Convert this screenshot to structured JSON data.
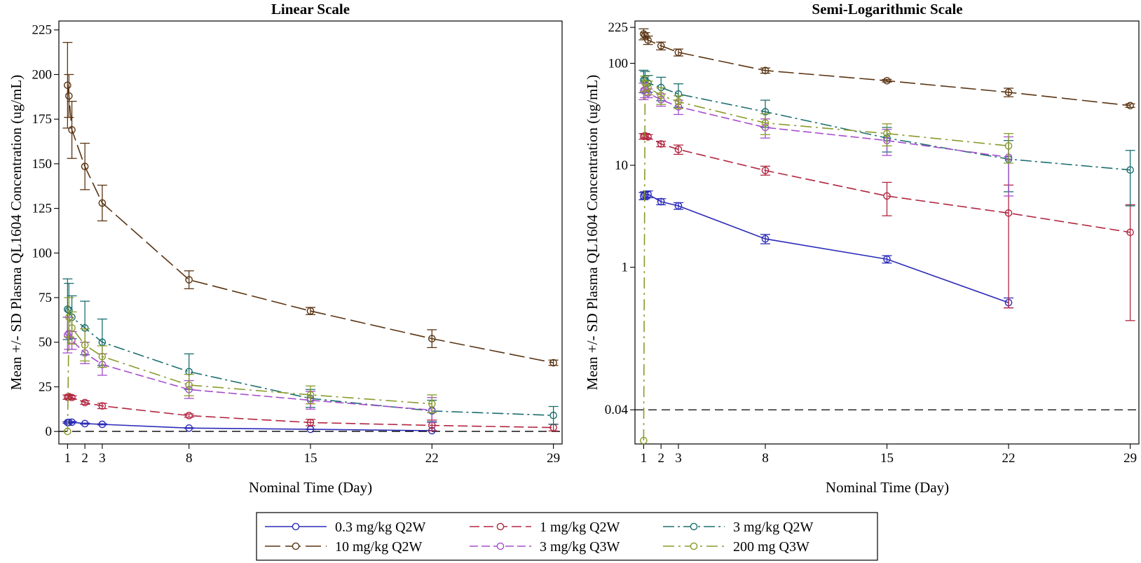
{
  "chart_data": [
    {
      "type": "line",
      "title": "Linear Scale",
      "xlabel": "Nominal Time (Day)",
      "ylabel": "Mean +/- SD Plasma QL1604 Concentration (ug/mL)",
      "yscale": "linear",
      "xlim": [
        0.5,
        29.5
      ],
      "ylim": [
        -7,
        230
      ],
      "xticks": [
        1,
        2,
        3,
        8,
        15,
        22,
        29
      ],
      "yticks": [
        0,
        25,
        50,
        75,
        100,
        125,
        150,
        175,
        200,
        225
      ],
      "reference_line": {
        "y": 0.04,
        "style": "dashed"
      },
      "series": [
        {
          "name": "0.3 mg/kg Q2W",
          "color": "#2b2bb8",
          "dash": "",
          "points": [
            {
              "x": 1,
              "y": 5.0,
              "sd": 0.4
            },
            {
              "x": 1.08,
              "y": 5.1,
              "sd": 0.4
            },
            {
              "x": 1.25,
              "y": 5.2,
              "sd": 0.4
            },
            {
              "x": 2,
              "y": 4.4,
              "sd": 0.3
            },
            {
              "x": 3,
              "y": 4.0,
              "sd": 0.3
            },
            {
              "x": 8,
              "y": 1.9,
              "sd": 0.2
            },
            {
              "x": 15,
              "y": 1.2,
              "sd": 0.1
            },
            {
              "x": 22,
              "y": 0.45,
              "sd": 0.05
            }
          ]
        },
        {
          "name": "1 mg/kg Q2W",
          "color": "#b22640",
          "dash": "14,6",
          "points": [
            {
              "x": 1,
              "y": 19.2,
              "sd": 1.2
            },
            {
              "x": 1.08,
              "y": 19.5,
              "sd": 1.0
            },
            {
              "x": 1.25,
              "y": 19.0,
              "sd": 1.0
            },
            {
              "x": 2,
              "y": 16.2,
              "sd": 1.0
            },
            {
              "x": 3,
              "y": 14.3,
              "sd": 1.5
            },
            {
              "x": 8,
              "y": 8.9,
              "sd": 0.9
            },
            {
              "x": 15,
              "y": 5.0,
              "sd": 1.8
            },
            {
              "x": 22,
              "y": 3.4,
              "sd": 3.0
            },
            {
              "x": 29,
              "y": 2.2,
              "sd": 1.9
            }
          ]
        },
        {
          "name": "3 mg/kg Q2W",
          "color": "#1b6e6e",
          "dash": "16,5,3,5",
          "points": [
            {
              "x": 1,
              "y": 68.5,
              "sd": 17
            },
            {
              "x": 1.08,
              "y": 68.0,
              "sd": 15
            },
            {
              "x": 1.25,
              "y": 64.0,
              "sd": 12
            },
            {
              "x": 2,
              "y": 58.0,
              "sd": 15
            },
            {
              "x": 3,
              "y": 50.0,
              "sd": 13
            },
            {
              "x": 8,
              "y": 33.5,
              "sd": 10
            },
            {
              "x": 15,
              "y": 18.5,
              "sd": 5
            },
            {
              "x": 22,
              "y": 11.5,
              "sd": 6
            },
            {
              "x": 29,
              "y": 9.0,
              "sd": 5
            }
          ]
        },
        {
          "name": "10 mg/kg Q2W",
          "color": "#5a3412",
          "dash": "22,7",
          "points": [
            {
              "x": 1,
              "y": 194.0,
              "sd": 24
            },
            {
              "x": 1.08,
              "y": 188.0,
              "sd": 12
            },
            {
              "x": 1.25,
              "y": 169.0,
              "sd": 16
            },
            {
              "x": 2,
              "y": 148.5,
              "sd": 13
            },
            {
              "x": 3,
              "y": 128.0,
              "sd": 10
            },
            {
              "x": 8,
              "y": 85.0,
              "sd": 5
            },
            {
              "x": 15,
              "y": 67.5,
              "sd": 2
            },
            {
              "x": 22,
              "y": 52.0,
              "sd": 5
            },
            {
              "x": 29,
              "y": 38.5,
              "sd": 1.5
            }
          ]
        },
        {
          "name": "3 mg/kg Q3W",
          "color": "#a64dcc",
          "dash": "12,5",
          "points": [
            {
              "x": 1,
              "y": 54.0,
              "sd": 10
            },
            {
              "x": 1.08,
              "y": 55.0,
              "sd": 9
            },
            {
              "x": 1.25,
              "y": 51.0,
              "sd": 5
            },
            {
              "x": 2,
              "y": 44.0,
              "sd": 6
            },
            {
              "x": 3,
              "y": 37.5,
              "sd": 6
            },
            {
              "x": 8,
              "y": 23.5,
              "sd": 5
            },
            {
              "x": 15,
              "y": 17.5,
              "sd": 5
            },
            {
              "x": 22,
              "y": 12.0,
              "sd": 7
            }
          ]
        },
        {
          "name": "200 mg Q3W",
          "color": "#8a9a2a",
          "dash": "16,6,3,6",
          "points": [
            {
              "x": 1,
              "y": 0.02,
              "sd": 0
            },
            {
              "x": 1.08,
              "y": 64.0,
              "sd": 11
            },
            {
              "x": 1.25,
              "y": 58.0,
              "sd": 9
            },
            {
              "x": 2,
              "y": 48.5,
              "sd": 9
            },
            {
              "x": 3,
              "y": 42.0,
              "sd": 6
            },
            {
              "x": 8,
              "y": 26.0,
              "sd": 6
            },
            {
              "x": 15,
              "y": 20.5,
              "sd": 5
            },
            {
              "x": 22,
              "y": 15.5,
              "sd": 5
            }
          ]
        }
      ]
    },
    {
      "type": "line",
      "title": "Semi-Logarithmic Scale",
      "xlabel": "Nominal Time (Day)",
      "ylabel": "Mean +/- SD Plasma QL1604 Concentration (ug/mL)",
      "yscale": "log",
      "xlim": [
        0.5,
        29.5
      ],
      "ylim": [
        0.0185,
        260
      ],
      "xticks": [
        1,
        2,
        3,
        8,
        15,
        22,
        29
      ],
      "yticks": [
        0.04,
        1,
        10,
        100,
        225
      ],
      "ytick_labels": [
        "0.04",
        "1",
        "10",
        "100",
        "225"
      ],
      "reference_line": {
        "y": 0.04,
        "style": "dashed"
      },
      "note": "Same series as the linear panel, plotted on a log10 y-axis."
    }
  ],
  "legend": {
    "items": [
      {
        "label": "0.3 mg/kg Q2W",
        "color": "#2b2bb8",
        "dash": ""
      },
      {
        "label": "1 mg/kg Q2W",
        "color": "#b22640",
        "dash": "14,6"
      },
      {
        "label": "3 mg/kg Q2W",
        "color": "#1b6e6e",
        "dash": "16,5,3,5"
      },
      {
        "label": "10 mg/kg Q2W",
        "color": "#5a3412",
        "dash": "22,7"
      },
      {
        "label": "3 mg/kg Q3W",
        "color": "#a64dcc",
        "dash": "12,5"
      },
      {
        "label": "200 mg Q3W",
        "color": "#8a9a2a",
        "dash": "16,6,3,6"
      }
    ]
  }
}
